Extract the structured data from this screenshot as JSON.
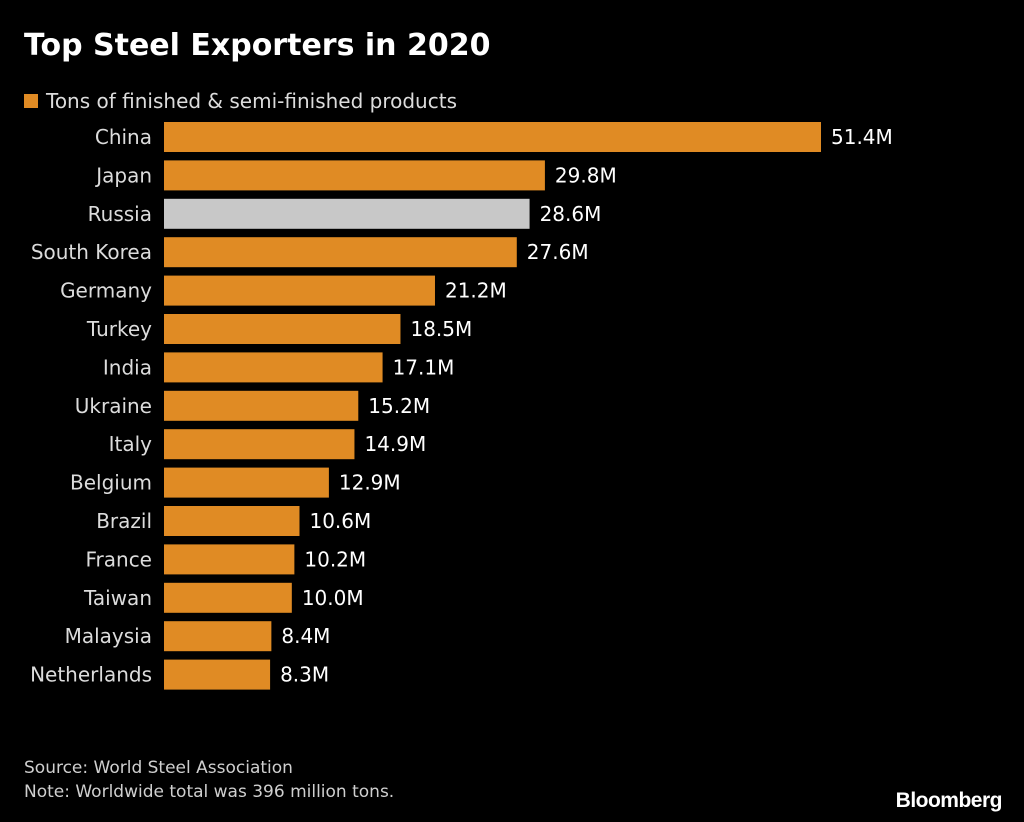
{
  "colors": {
    "background": "#000000",
    "bar": "#E08B24",
    "highlight": "#C8C8C8",
    "text": "#FFFFFF",
    "muted": "#DCDCDC"
  },
  "chart_data": {
    "type": "bar",
    "orientation": "horizontal",
    "title": "Top Steel Exporters in 2020",
    "legend": {
      "label": "Tons of finished & semi-finished products",
      "placement": "top-left"
    },
    "categories": [
      "China",
      "Japan",
      "Russia",
      "South Korea",
      "Germany",
      "Turkey",
      "India",
      "Ukraine",
      "Italy",
      "Belgium",
      "Brazil",
      "France",
      "Taiwan",
      "Malaysia",
      "Netherlands"
    ],
    "values": [
      51.4,
      29.8,
      28.6,
      27.6,
      21.2,
      18.5,
      17.1,
      15.2,
      14.9,
      12.9,
      10.6,
      10.2,
      10.0,
      8.4,
      8.3
    ],
    "value_labels": [
      "51.4M",
      "29.8M",
      "28.6M",
      "27.6M",
      "21.2M",
      "18.5M",
      "17.1M",
      "15.2M",
      "14.9M",
      "12.9M",
      "10.6M",
      "10.2M",
      "10.0M",
      "8.4M",
      "8.3M"
    ],
    "highlight": "Russia",
    "unit": "million tons",
    "xlim": [
      0,
      51.4
    ],
    "grid": false
  },
  "footer": {
    "source": "Source: World Steel Association",
    "note": "Note: Worldwide total was 396 million tons."
  },
  "brand": "Bloomberg"
}
